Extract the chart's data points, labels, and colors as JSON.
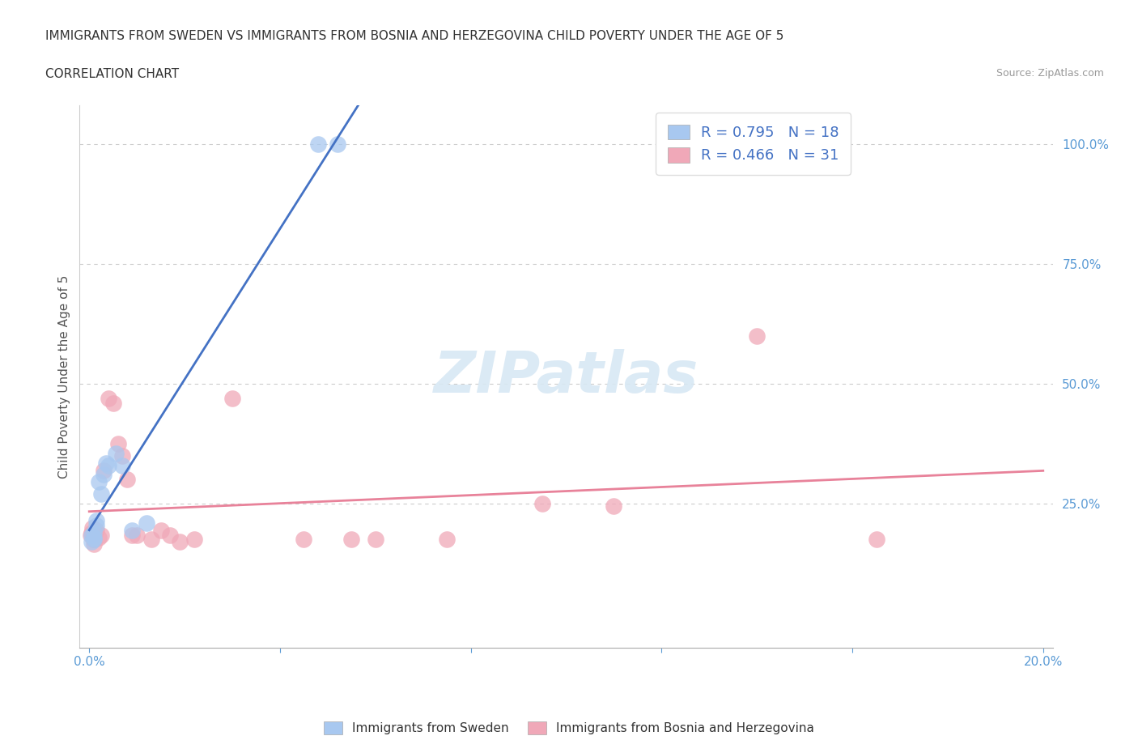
{
  "title_line1": "IMMIGRANTS FROM SWEDEN VS IMMIGRANTS FROM BOSNIA AND HERZEGOVINA CHILD POVERTY UNDER THE AGE OF 5",
  "title_line2": "CORRELATION CHART",
  "source": "Source: ZipAtlas.com",
  "ylabel": "Child Poverty Under the Age of 5",
  "watermark": "ZIPatlas",
  "xlim": [
    -0.002,
    0.202
  ],
  "ylim": [
    -0.05,
    1.08
  ],
  "sweden_color": "#a8c8f0",
  "bosnia_color": "#f0a8b8",
  "sweden_R": 0.795,
  "sweden_N": 18,
  "bosnia_R": 0.466,
  "bosnia_N": 31,
  "sweden_line_color": "#4472c4",
  "bosnia_line_color": "#e8829a",
  "sweden_scatter": [
    [
      0.0005,
      0.185
    ],
    [
      0.0005,
      0.17
    ],
    [
      0.001,
      0.19
    ],
    [
      0.001,
      0.18
    ],
    [
      0.001,
      0.175
    ],
    [
      0.0015,
      0.205
    ],
    [
      0.0015,
      0.215
    ],
    [
      0.002,
      0.295
    ],
    [
      0.0025,
      0.27
    ],
    [
      0.003,
      0.31
    ],
    [
      0.0035,
      0.335
    ],
    [
      0.004,
      0.33
    ],
    [
      0.0055,
      0.355
    ],
    [
      0.007,
      0.33
    ],
    [
      0.009,
      0.195
    ],
    [
      0.012,
      0.21
    ],
    [
      0.048,
      1.0
    ],
    [
      0.052,
      1.0
    ]
  ],
  "bosnia_scatter": [
    [
      0.0003,
      0.185
    ],
    [
      0.0005,
      0.19
    ],
    [
      0.0007,
      0.2
    ],
    [
      0.001,
      0.175
    ],
    [
      0.001,
      0.165
    ],
    [
      0.001,
      0.175
    ],
    [
      0.0015,
      0.195
    ],
    [
      0.002,
      0.18
    ],
    [
      0.0025,
      0.185
    ],
    [
      0.003,
      0.32
    ],
    [
      0.004,
      0.47
    ],
    [
      0.005,
      0.46
    ],
    [
      0.006,
      0.375
    ],
    [
      0.007,
      0.35
    ],
    [
      0.008,
      0.3
    ],
    [
      0.009,
      0.185
    ],
    [
      0.01,
      0.185
    ],
    [
      0.013,
      0.175
    ],
    [
      0.015,
      0.195
    ],
    [
      0.017,
      0.185
    ],
    [
      0.019,
      0.17
    ],
    [
      0.022,
      0.175
    ],
    [
      0.03,
      0.47
    ],
    [
      0.045,
      0.175
    ],
    [
      0.055,
      0.175
    ],
    [
      0.06,
      0.175
    ],
    [
      0.075,
      0.175
    ],
    [
      0.095,
      0.25
    ],
    [
      0.11,
      0.245
    ],
    [
      0.14,
      0.6
    ],
    [
      0.165,
      0.175
    ]
  ]
}
